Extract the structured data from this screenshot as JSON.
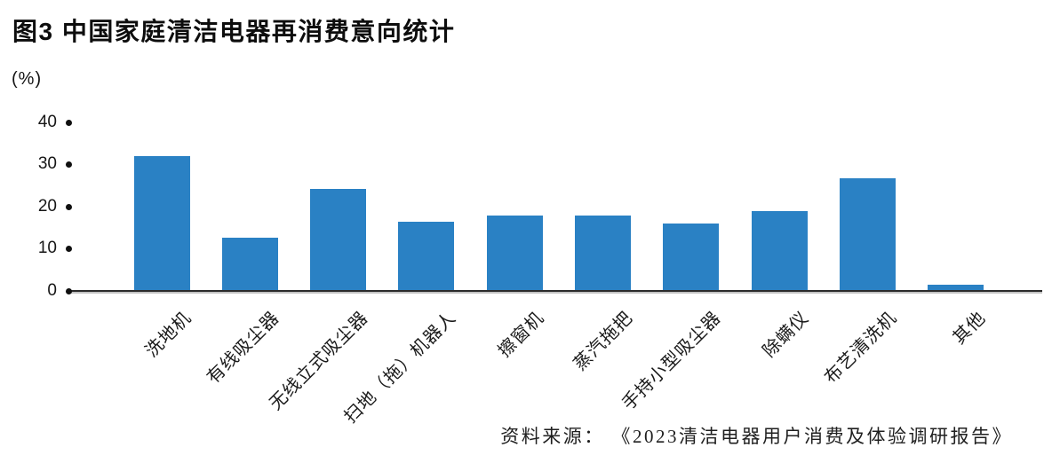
{
  "figure": {
    "title": "图3 中国家庭清洁电器再消费意向统计",
    "unit_label": "(%)",
    "source": "资料来源： 《2023清洁电器用户消费及体验调研报告》"
  },
  "colors": {
    "bar": "#2a81c4",
    "axis": "#2b2b2b",
    "text": "#141414",
    "background": "#ffffff"
  },
  "chart_data": {
    "type": "bar",
    "title": "图3 中国家庭清洁电器再消费意向统计",
    "categories": [
      "洗地机",
      "有线吸尘器",
      "无线立式吸尘器",
      "扫地（拖）机器人",
      "擦窗机",
      "蒸汽拖把",
      "手持小型吸尘器",
      "除螨仪",
      "布艺清洗机",
      "其他"
    ],
    "values": [
      31.9,
      12.6,
      24.2,
      16.4,
      17.9,
      17.8,
      16.0,
      18.9,
      26.6,
      1.5
    ],
    "xlabel": "",
    "ylabel": "(%)",
    "ylim": [
      0,
      40
    ],
    "yticks": [
      0,
      10,
      20,
      30,
      40
    ],
    "grid": false,
    "legend": false,
    "bar_color": "#2a81c4",
    "tick_style": "dot",
    "source": "资料来源： 《2023清洁电器用户消费及体验调研报告》"
  }
}
